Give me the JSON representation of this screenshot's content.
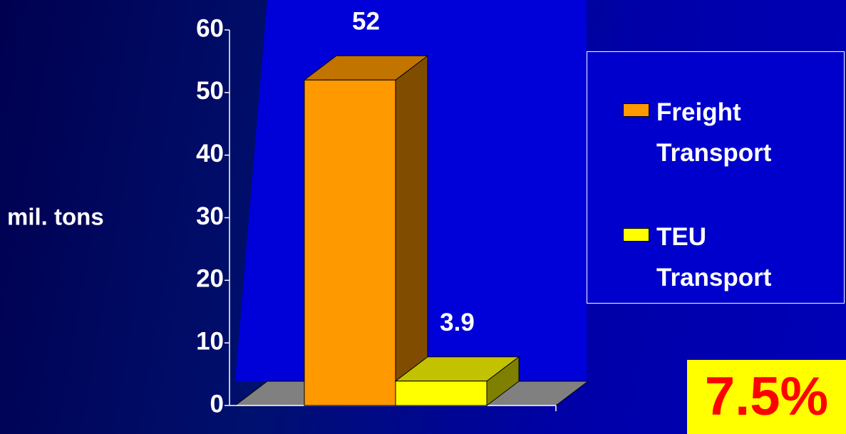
{
  "chart_data": {
    "type": "bar3d",
    "y_label": "mil. tons",
    "categories": [
      null
    ],
    "series": [
      {
        "name": "Freight Transport",
        "color": "#ff9900",
        "values": [
          52
        ]
      },
      {
        "name": "TEU Transport",
        "color": "#ffff00",
        "values": [
          3.9
        ]
      }
    ],
    "ylim": [
      0,
      60
    ],
    "yticks": [
      0,
      10,
      20,
      30,
      40,
      50,
      60
    ],
    "legend": "right",
    "annotation": "7.5%"
  }
}
